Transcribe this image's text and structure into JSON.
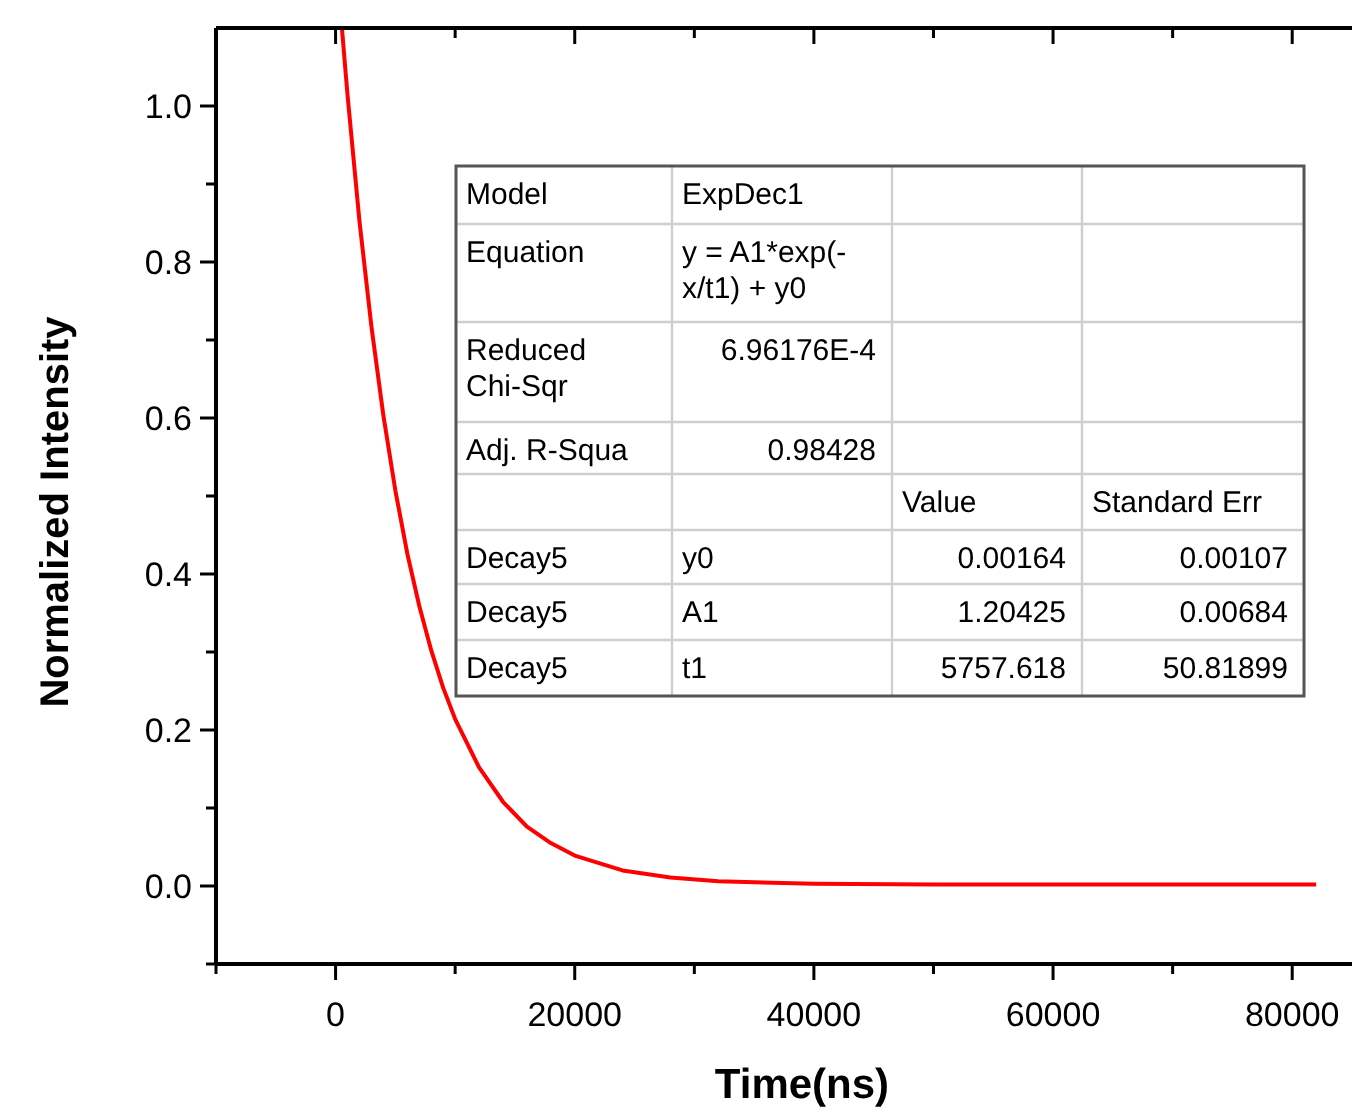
{
  "chart_data": {
    "type": "line",
    "xlabel": "Time(ns)",
    "ylabel": "Normalized Intensity",
    "x": [
      530,
      1000,
      2000,
      3000,
      4000,
      5000,
      6000,
      7000,
      8000,
      9000,
      10000,
      12000,
      14000,
      16000,
      18000,
      20000,
      24000,
      28000,
      32000,
      40000,
      50000,
      60000,
      70000,
      82000
    ],
    "series": [
      {
        "color": "#ff0000",
        "values": [
          1.1,
          1.014,
          0.852,
          0.717,
          0.603,
          0.507,
          0.426,
          0.359,
          0.302,
          0.254,
          0.214,
          0.152,
          0.108,
          0.076,
          0.055,
          0.039,
          0.02,
          0.011,
          0.006,
          0.003,
          0.002,
          0.002,
          0.002,
          0.002
        ]
      }
    ],
    "xlim": [
      -10000,
      85000
    ],
    "xticks": [
      {
        "value": -10000,
        "label": null
      },
      0,
      {
        "value": 10000,
        "label": null
      },
      20000,
      {
        "value": 30000,
        "label": null
      },
      40000,
      {
        "value": 50000,
        "label": null
      },
      60000,
      {
        "value": 70000,
        "label": null
      },
      80000
    ],
    "ylim": [
      -0.1,
      1.1
    ],
    "yticks": [
      {
        "value": -0.1,
        "label": null
      },
      {
        "value": 0,
        "label": "0.0"
      },
      {
        "value": 0.1,
        "label": null
      },
      {
        "value": 0.2,
        "label": "0.2"
      },
      {
        "value": 0.3,
        "label": null
      },
      {
        "value": 0.4,
        "label": "0.4"
      },
      {
        "value": 0.5,
        "label": null
      },
      {
        "value": 0.6,
        "label": "0.6"
      },
      {
        "value": 0.7,
        "label": null
      },
      {
        "value": 0.8,
        "label": "0.8"
      },
      {
        "value": 0.9,
        "label": null
      },
      {
        "value": 1.0,
        "label": "1.0"
      }
    ],
    "marker": "none",
    "line_style": "solid",
    "annotations": [
      "Model",
      "ExpDec1",
      "Equation",
      "y = A1*exp(-x/t1) + y0",
      "Reduced Chi-Sqr",
      "6.96176E-4",
      "Adj. R-Squa",
      "0.98428",
      "Value",
      "Standard Err",
      "Decay5",
      "y0",
      "0.00164",
      "0.00107",
      "Decay5",
      "A1",
      "1.20425",
      "0.00684",
      "Decay5",
      "t1",
      "5757.618",
      "50.81899"
    ]
  }
}
